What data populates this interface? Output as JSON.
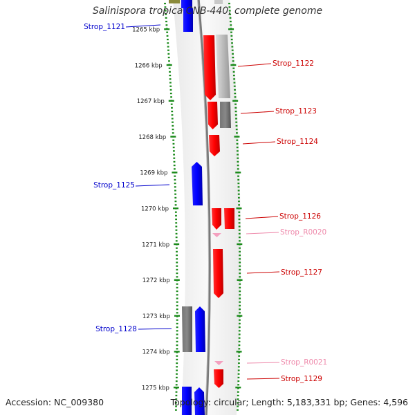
{
  "title": "Salinispora tropica CNB-440, complete genome",
  "footer": {
    "accession": "Accession: NC_009380",
    "summary": "Topology: circular; Length: 5,183,331 bp; Genes: 4,596"
  },
  "map": {
    "ticks": [
      "1265 kbp",
      "1266 kbp",
      "1267 kbp",
      "1268 kbp",
      "1269 kbp",
      "1270 kbp",
      "1271 kbp",
      "1272 kbp",
      "1273 kbp",
      "1274 kbp",
      "1275 kbp"
    ],
    "genes": [
      {
        "label": "Strop_1121",
        "strand": "reverse",
        "color": "#0000cc",
        "label_side": "left"
      },
      {
        "label": "Strop_1122",
        "strand": "forward",
        "color": "#cc0000",
        "label_side": "right"
      },
      {
        "label": "Strop_1123",
        "strand": "forward",
        "color": "#cc0000",
        "label_side": "right"
      },
      {
        "label": "Strop_1124",
        "strand": "forward",
        "color": "#cc0000",
        "label_side": "right"
      },
      {
        "label": "Strop_1125",
        "strand": "reverse",
        "color": "#0000cc",
        "label_side": "left"
      },
      {
        "label": "Strop_1126",
        "strand": "forward",
        "color": "#cc0000",
        "label_side": "right"
      },
      {
        "label": "Strop_R0020",
        "strand": "forward",
        "color": "#ee88aa",
        "label_side": "right"
      },
      {
        "label": "Strop_1127",
        "strand": "forward",
        "color": "#cc0000",
        "label_side": "right"
      },
      {
        "label": "Strop_1128",
        "strand": "reverse",
        "color": "#0000cc",
        "label_side": "left"
      },
      {
        "label": "Strop_R0021",
        "strand": "forward",
        "color": "#ee88aa",
        "label_side": "right"
      },
      {
        "label": "Strop_1129",
        "strand": "forward",
        "color": "#cc0000",
        "label_side": "right"
      }
    ]
  }
}
